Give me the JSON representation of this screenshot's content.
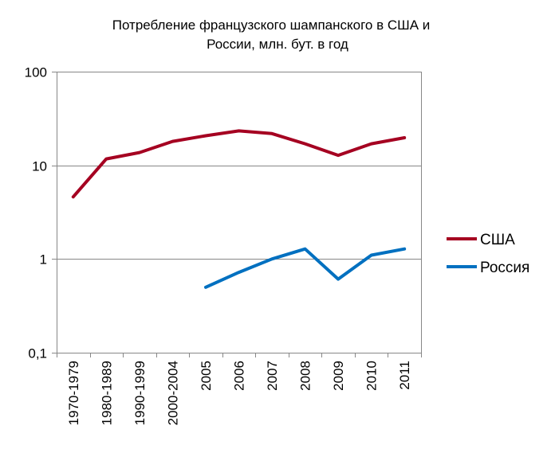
{
  "chart_data": {
    "type": "line",
    "title": [
      "Потребление французского шампанского в США и",
      "России, млн.  бут. в год"
    ],
    "xlabel": "",
    "ylabel": "",
    "yscale": "log",
    "ylim": [
      0.1,
      100
    ],
    "yticks": [
      0.1,
      1,
      10,
      100
    ],
    "ytick_labels": [
      "0,1",
      "1",
      "10",
      "100"
    ],
    "grid": true,
    "legend_position": "right",
    "categories": [
      "1970-1979",
      "1980-1989",
      "1990-1999",
      "2000-2004",
      "2005",
      "2006",
      "2007",
      "2008",
      "2009",
      "2010",
      "2011"
    ],
    "series": [
      {
        "name": "США",
        "color": "#A50021",
        "values": [
          4.6,
          11.7,
          13.7,
          18,
          20.7,
          23.3,
          21.8,
          17,
          12.8,
          17,
          19.7
        ]
      },
      {
        "name": "Россия",
        "color": "#0070C0",
        "values": [
          null,
          null,
          null,
          null,
          0.5,
          0.72,
          1.0,
          1.28,
          0.61,
          1.1,
          1.28
        ]
      }
    ]
  }
}
